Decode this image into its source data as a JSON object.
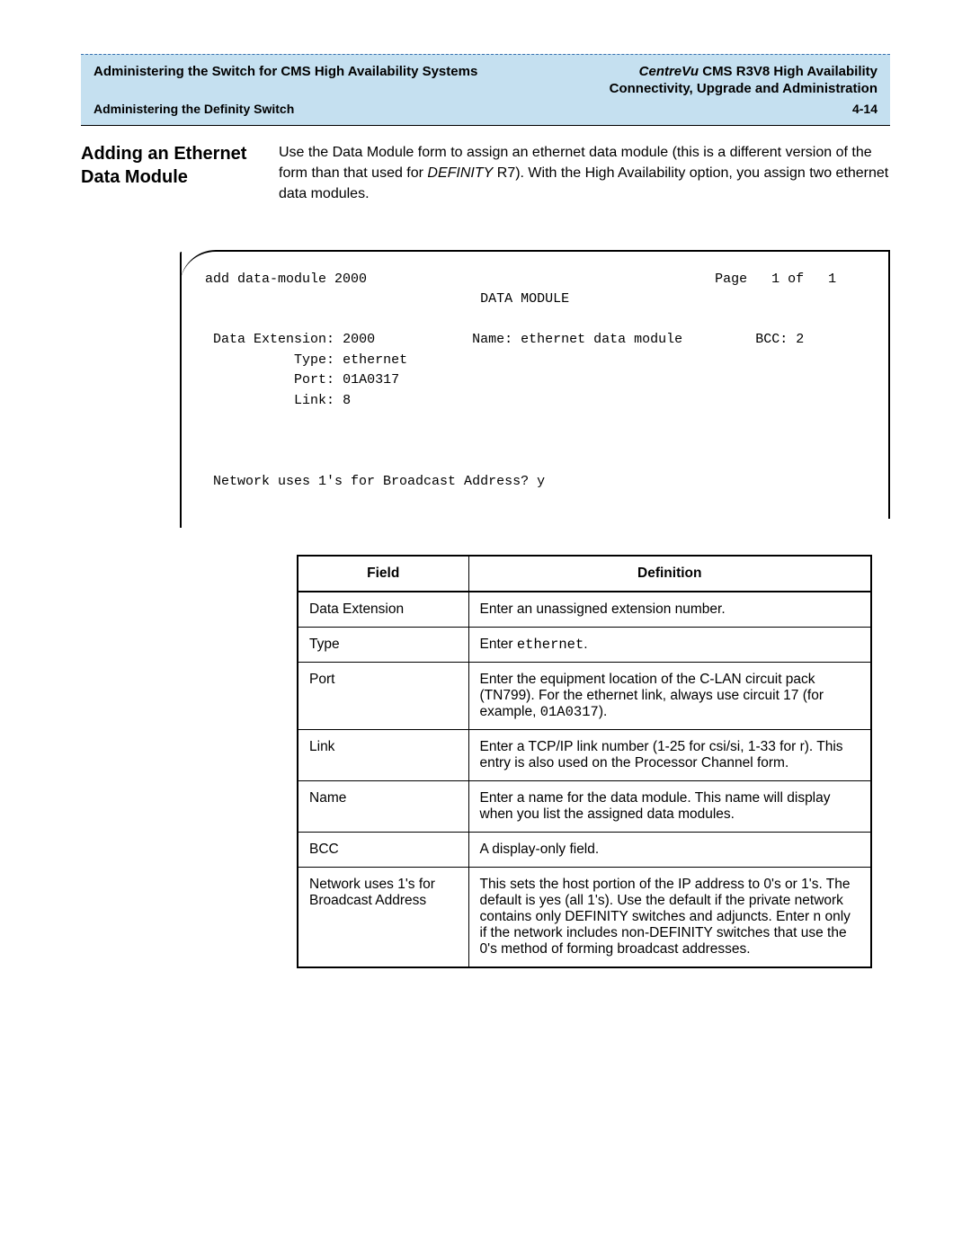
{
  "header": {
    "leftTitle": "Administering the Switch for CMS High Availability Systems",
    "rightTitleItalic": "CentreVu",
    "rightTitleRest": " CMS R3V8 High Availability",
    "subRight": "Connectivity, Upgrade and Administration",
    "bottomLeft": "Administering the Definity Switch",
    "bottomRight": "4-14"
  },
  "section": {
    "title": "Adding an Ethernet Data Module",
    "intro_pre": "Use the Data Module form to assign an ethernet data module (this is a different version of the form than that used for ",
    "intro_italic": "DEFINITY",
    "intro_post": " R7). With the High Availability option, you assign two ethernet data modules."
  },
  "terminal": {
    "cmd": "add data-module 2000",
    "pageLabel": "Page   1 of   1",
    "formTitle": "DATA MODULE",
    "fields": {
      "dataExtensionLabel": "Data Extension:",
      "dataExtensionValue": "2000",
      "nameLabel": "Name:",
      "nameValue": "ethernet data module",
      "bccLabel": "BCC:",
      "bccValue": "2",
      "typeLabel": "Type:",
      "typeValue": "ethernet",
      "portLabel": "Port:",
      "portValue": "01A0317",
      "linkLabel": "Link:",
      "linkValue": "8"
    },
    "broadcastLine": "Network uses 1's for Broadcast Address? y"
  },
  "table": {
    "headers": {
      "field": "Field",
      "definition": "Definition"
    },
    "rows": [
      {
        "field": "Data Extension",
        "def_plain": "Enter an unassigned extension number."
      },
      {
        "field": "Type",
        "def_pre": "Enter ",
        "def_mono": "ethernet",
        "def_post": "."
      },
      {
        "field": "Port",
        "def_pre": "Enter the equipment location of the C-LAN circuit pack (TN799). For the ethernet link, always use circuit 17 (for example, ",
        "def_mono": "01A0317",
        "def_post": ")."
      },
      {
        "field": "Link",
        "def_plain": "Enter a TCP/IP link number (1-25 for csi/si, 1-33 for r). This entry is also used on the Processor Channel form."
      },
      {
        "field": "Name",
        "def_plain": "Enter a name for the data module. This name will display when you list the assigned data modules."
      },
      {
        "field": "BCC",
        "def_plain": "A display-only field."
      },
      {
        "field": "Network uses 1's for Broadcast Address",
        "def_plain": "This sets the host portion of the IP address to 0's or 1's. The default is yes (all 1's). Use the default if the private network contains only DEFINITY switches and adjuncts. Enter n only if the network includes non-DEFINITY switches that use the 0's method of forming broadcast addresses."
      }
    ]
  },
  "style": {
    "headerBg": "#c5e0f0",
    "col1Width": "190px"
  }
}
